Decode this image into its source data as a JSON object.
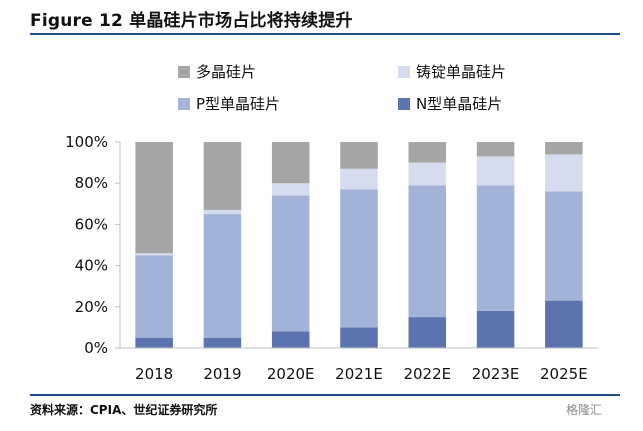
{
  "figure": {
    "title": "Figure 12 单晶硅片市场占比将持续提升",
    "source": "资料来源：CPIA、世纪证券研究所",
    "watermark": "格隆汇"
  },
  "chart_data": {
    "type": "bar",
    "stacked": true,
    "categories": [
      "2018",
      "2019",
      "2020E",
      "2021E",
      "2022E",
      "2023E",
      "2025E"
    ],
    "series": [
      {
        "name": "N型单晶硅片",
        "color": "#5b74b0",
        "values": [
          5,
          5,
          8,
          10,
          15,
          18,
          23
        ]
      },
      {
        "name": "P型单晶硅片",
        "color": "#a3b3d8",
        "values": [
          40,
          60,
          66,
          67,
          64,
          61,
          53
        ]
      },
      {
        "name": "铸锭单晶硅片",
        "color": "#d4dced",
        "values": [
          1,
          2,
          6,
          10,
          11,
          14,
          18
        ]
      },
      {
        "name": "多晶硅片",
        "color": "#a6a6a6",
        "values": [
          54,
          33,
          20,
          13,
          10,
          7,
          6
        ]
      }
    ],
    "legend_order": [
      "多晶硅片",
      "铸锭单晶硅片",
      "P型单晶硅片",
      "N型单晶硅片"
    ],
    "yticks": [
      "0%",
      "20%",
      "40%",
      "60%",
      "80%",
      "100%"
    ],
    "ylim": [
      0,
      100
    ],
    "legend": "top",
    "grid": false
  }
}
